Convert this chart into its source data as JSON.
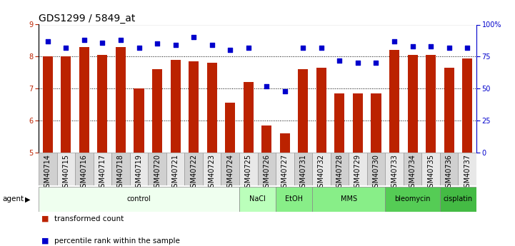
{
  "title": "GDS1299 / 5849_at",
  "samples": [
    "GSM40714",
    "GSM40715",
    "GSM40716",
    "GSM40717",
    "GSM40718",
    "GSM40719",
    "GSM40720",
    "GSM40721",
    "GSM40722",
    "GSM40723",
    "GSM40724",
    "GSM40725",
    "GSM40726",
    "GSM40727",
    "GSM40731",
    "GSM40732",
    "GSM40728",
    "GSM40729",
    "GSM40730",
    "GSM40733",
    "GSM40734",
    "GSM40735",
    "GSM40736",
    "GSM40737"
  ],
  "bar_values": [
    8.0,
    8.0,
    8.3,
    8.05,
    8.3,
    7.0,
    7.6,
    7.9,
    7.85,
    7.8,
    6.55,
    7.2,
    5.85,
    5.6,
    7.6,
    7.65,
    6.85,
    6.85,
    6.85,
    8.2,
    8.05,
    8.05,
    7.65,
    7.95
  ],
  "percentile_values": [
    87,
    82,
    88,
    86,
    88,
    82,
    85,
    84,
    90,
    84,
    80,
    82,
    52,
    48,
    82,
    82,
    72,
    70,
    70,
    87,
    83,
    83,
    82,
    82
  ],
  "ylim_left": [
    5,
    9
  ],
  "ylim_right": [
    0,
    100
  ],
  "yticks_left": [
    5,
    6,
    7,
    8,
    9
  ],
  "yticks_right": [
    0,
    25,
    50,
    75,
    100
  ],
  "ytick_labels_right": [
    "0",
    "25",
    "50",
    "75",
    "100%"
  ],
  "bar_color": "#bb2200",
  "dot_color": "#0000cc",
  "agent_groups": [
    {
      "label": "control",
      "start": 0,
      "end": 11,
      "color": "#efffef"
    },
    {
      "label": "NaCl",
      "start": 11,
      "end": 13,
      "color": "#bbffbb"
    },
    {
      "label": "EtOH",
      "start": 13,
      "end": 15,
      "color": "#88ee88"
    },
    {
      "label": "MMS",
      "start": 15,
      "end": 19,
      "color": "#88ee88"
    },
    {
      "label": "bleomycin",
      "start": 19,
      "end": 22,
      "color": "#55cc55"
    },
    {
      "label": "cisplatin",
      "start": 22,
      "end": 24,
      "color": "#44bb44"
    }
  ],
  "title_fontsize": 10,
  "tick_fontsize": 7,
  "bar_width": 0.55,
  "dot_size": 22,
  "label_box_colors": [
    "#d0d0d0",
    "#e8e8e8"
  ]
}
